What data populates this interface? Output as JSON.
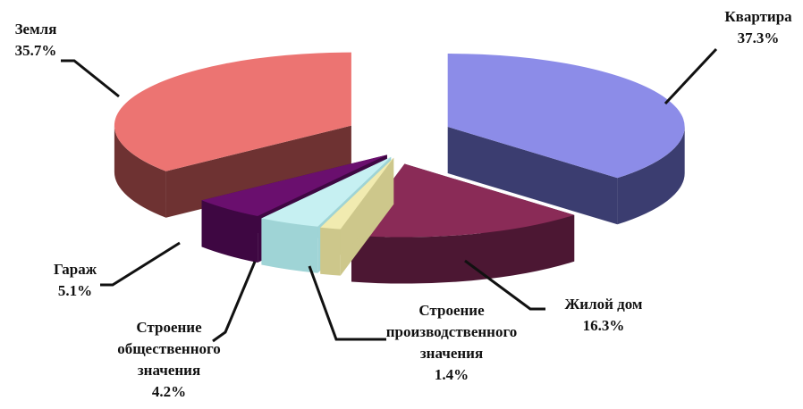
{
  "chart_data": {
    "type": "pie",
    "style": "3d-exploded",
    "slices": [
      {
        "name": "Квартира",
        "value": 37.3,
        "label": "37.3%",
        "color": "#8c8ce8",
        "side_color": "#3b3d70"
      },
      {
        "name": "Жилой дом",
        "value": 16.3,
        "label": "16.3%",
        "color": "#8a2b57",
        "side_color": "#4c1733"
      },
      {
        "name": "Строение производственного значения",
        "value": 1.4,
        "label": "1.4%",
        "color": "#f1ebb0",
        "side_color": "#cdc78b"
      },
      {
        "name": "Строение общественного значения",
        "value": 4.2,
        "label": "4.2%",
        "color": "#c6f0f2",
        "side_color": "#9fd4d6"
      },
      {
        "name": "Гараж",
        "value": 5.1,
        "label": "5.1%",
        "color": "#6a0f6e",
        "side_color": "#3e0742"
      },
      {
        "name": "Земля",
        "value": 35.7,
        "label": "35.7%",
        "color": "#ec7472",
        "side_color": "#6e3232"
      }
    ]
  }
}
